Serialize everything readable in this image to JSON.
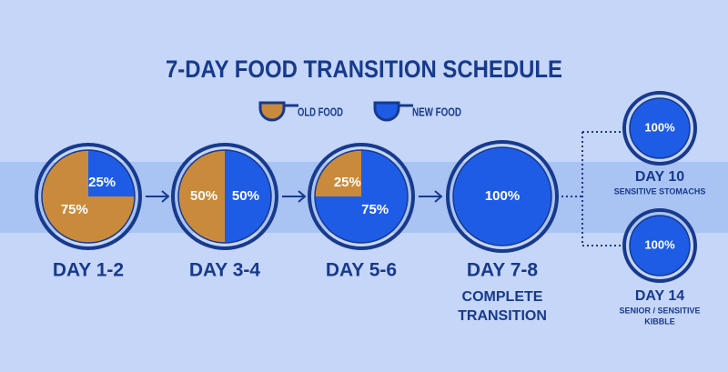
{
  "title": "7-DAY FOOD TRANSITION SCHEDULE",
  "legend": {
    "old": "OLD FOOD",
    "new": "NEW FOOD"
  },
  "colors": {
    "old": "#c98a3b",
    "new": "#1e5ce6",
    "ink": "#173a8c"
  },
  "stages": [
    {
      "day": "DAY 1-2",
      "old": 75,
      "new": 25,
      "old_label": "75%",
      "new_label": "25%"
    },
    {
      "day": "DAY 3-4",
      "old": 50,
      "new": 50,
      "old_label": "50%",
      "new_label": "50%"
    },
    {
      "day": "DAY 5-6",
      "old": 25,
      "new": 75,
      "old_label": "25%",
      "new_label": "75%"
    },
    {
      "day": "DAY 7-8",
      "new": 100,
      "new_label": "100%",
      "note": [
        "COMPLETE",
        "TRANSITION"
      ]
    }
  ],
  "options": [
    {
      "day": "DAY 10",
      "new": 100,
      "new_label": "100%",
      "note": [
        "SENSITIVE STOMACHS"
      ]
    },
    {
      "day": "DAY 14",
      "new": 100,
      "new_label": "100%",
      "note": [
        "SENIOR / SENSITIVE",
        "KIBBLE"
      ]
    }
  ]
}
